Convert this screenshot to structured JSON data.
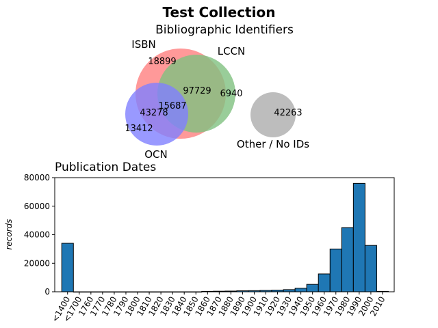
{
  "figure": {
    "title": "Test Collection"
  },
  "chart_data": [
    {
      "type": "venn",
      "title": "Bibliographic Identifiers",
      "sets": [
        {
          "name": "ISBN",
          "color": "#ff8080"
        },
        {
          "name": "LCCN",
          "color": "#80c080"
        },
        {
          "name": "OCN",
          "color": "#8080ff"
        },
        {
          "name": "Other / No IDs",
          "color": "#bdbdbd"
        }
      ],
      "regions": [
        {
          "sets": [
            "ISBN"
          ],
          "value": "18899"
        },
        {
          "sets": [
            "ISBN",
            "LCCN"
          ],
          "value": "97729"
        },
        {
          "sets": [
            "LCCN"
          ],
          "value": "6940"
        },
        {
          "sets": [
            "ISBN",
            "LCCN",
            "OCN"
          ],
          "value": "15687"
        },
        {
          "sets": [
            "ISBN",
            "OCN"
          ],
          "value": "43278"
        },
        {
          "sets": [
            "OCN"
          ],
          "value": "13412"
        },
        {
          "sets": [
            "Other / No IDs"
          ],
          "value": "42263"
        }
      ]
    },
    {
      "type": "bar",
      "title": "Publication Dates",
      "xlabel": "",
      "ylabel": "records",
      "ylim": [
        0,
        80000
      ],
      "yticks": [
        "0",
        "20000",
        "40000",
        "60000",
        "80000"
      ],
      "bar_color": "#1f77b4",
      "categories": [
        "<1400",
        "<1700",
        "1760",
        "1770",
        "1780",
        "1790",
        "1800",
        "1810",
        "1820",
        "1830",
        "1840",
        "1850",
        "1860",
        "1870",
        "1880",
        "1890",
        "1900",
        "1910",
        "1920",
        "1930",
        "1940",
        "1950",
        "1960",
        "1970",
        "1980",
        "1990",
        "2000",
        "2010"
      ],
      "values": [
        34000,
        0,
        0,
        0,
        0,
        0,
        0,
        0,
        0,
        0,
        0,
        0,
        300,
        400,
        500,
        700,
        800,
        1000,
        1200,
        1500,
        2500,
        5200,
        12500,
        30000,
        45000,
        76000,
        32500,
        300
      ]
    }
  ]
}
